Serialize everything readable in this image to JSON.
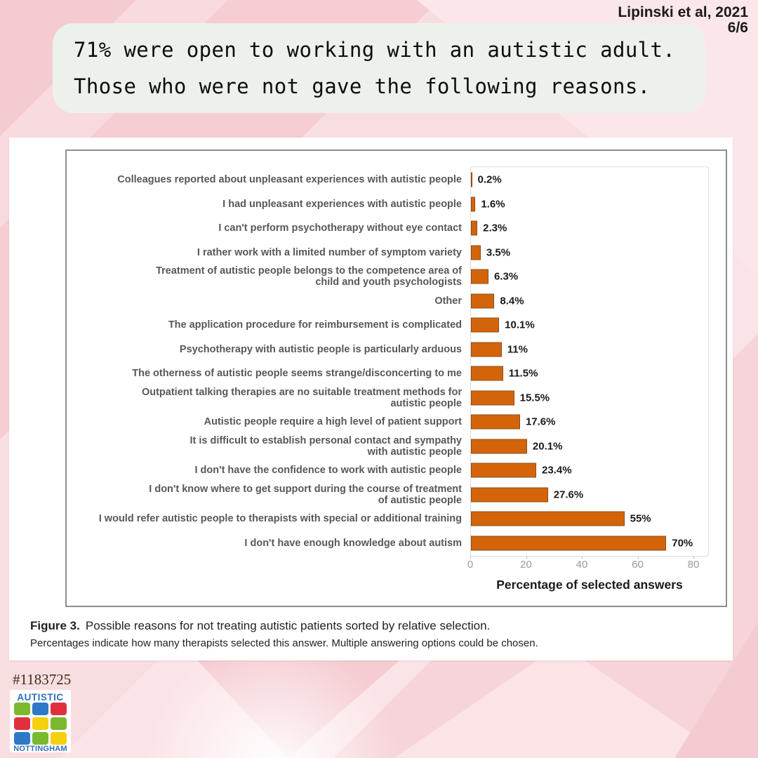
{
  "attribution": {
    "source": "Lipinski et al, 2021",
    "page": "6/6"
  },
  "header": {
    "line1": "71% were open to working with an autistic adult.",
    "line2": "Those who were not gave the following reasons."
  },
  "figure": {
    "caption_title": "Figure 3.",
    "caption_text": "Possible reasons for not treating autistic patients sorted by relative selection.",
    "caption_note": "Percentages indicate how many therapists selected this answer. Multiple answering options could be chosen."
  },
  "chart_data": {
    "type": "bar",
    "orientation": "horizontal",
    "xlabel": "Percentage of selected answers",
    "xlim": [
      0,
      85
    ],
    "xticks": [
      0,
      20,
      40,
      60,
      80
    ],
    "grid": false,
    "bar_color": "#d4640a",
    "bar_border_color": "#8a4f1d",
    "categories": [
      "Colleagues reported about unpleasant experiences with autistic people",
      "I had unpleasant experiences with autistic people",
      "I can't perform psychotherapy without eye contact",
      "I rather work with a limited number of symptom variety",
      "Treatment of autistic people belongs to the competence area of\nchild and youth psychologists",
      "Other",
      "The application procedure for reimbursement is complicated",
      "Psychotherapy with autistic people is particularly arduous",
      "The otherness of autistic people seems strange/disconcerting to me",
      "Outpatient talking therapies are no suitable treatment methods for\nautistic people",
      "Autistic people require a high level of patient support",
      "It is difficult to establish personal contact and sympathy\nwith autistic people",
      "I don't have the confidence to work with autistic people",
      "I don't know where to get support during the course of treatment\nof autistic people",
      "I would refer autistic people to therapists with special or additional training",
      "I don't have enough knowledge about autism"
    ],
    "values": [
      0.2,
      1.6,
      2.3,
      3.5,
      6.3,
      8.4,
      10.1,
      11,
      11.5,
      15.5,
      17.6,
      20.1,
      23.4,
      27.6,
      55,
      70
    ],
    "value_labels": [
      "0.2%",
      "1.6%",
      "2.3%",
      "3.5%",
      "6.3%",
      "8.4%",
      "10.1%",
      "11%",
      "11.5%",
      "15.5%",
      "17.6%",
      "20.1%",
      "23.4%",
      "27.6%",
      "55%",
      "70%"
    ]
  },
  "footer": {
    "ref_number": "#1183725",
    "logo": {
      "top": "AUTISTIC",
      "bottom": "NOTTINGHAM",
      "grid_colors": [
        [
          "#7ab82e",
          "#2e78c8",
          "#e03040"
        ],
        [
          "#e03040",
          "#f5d010",
          "#7ab82e"
        ],
        [
          "#2e78c8",
          "#7ab82e",
          "#f5d010"
        ]
      ]
    }
  }
}
